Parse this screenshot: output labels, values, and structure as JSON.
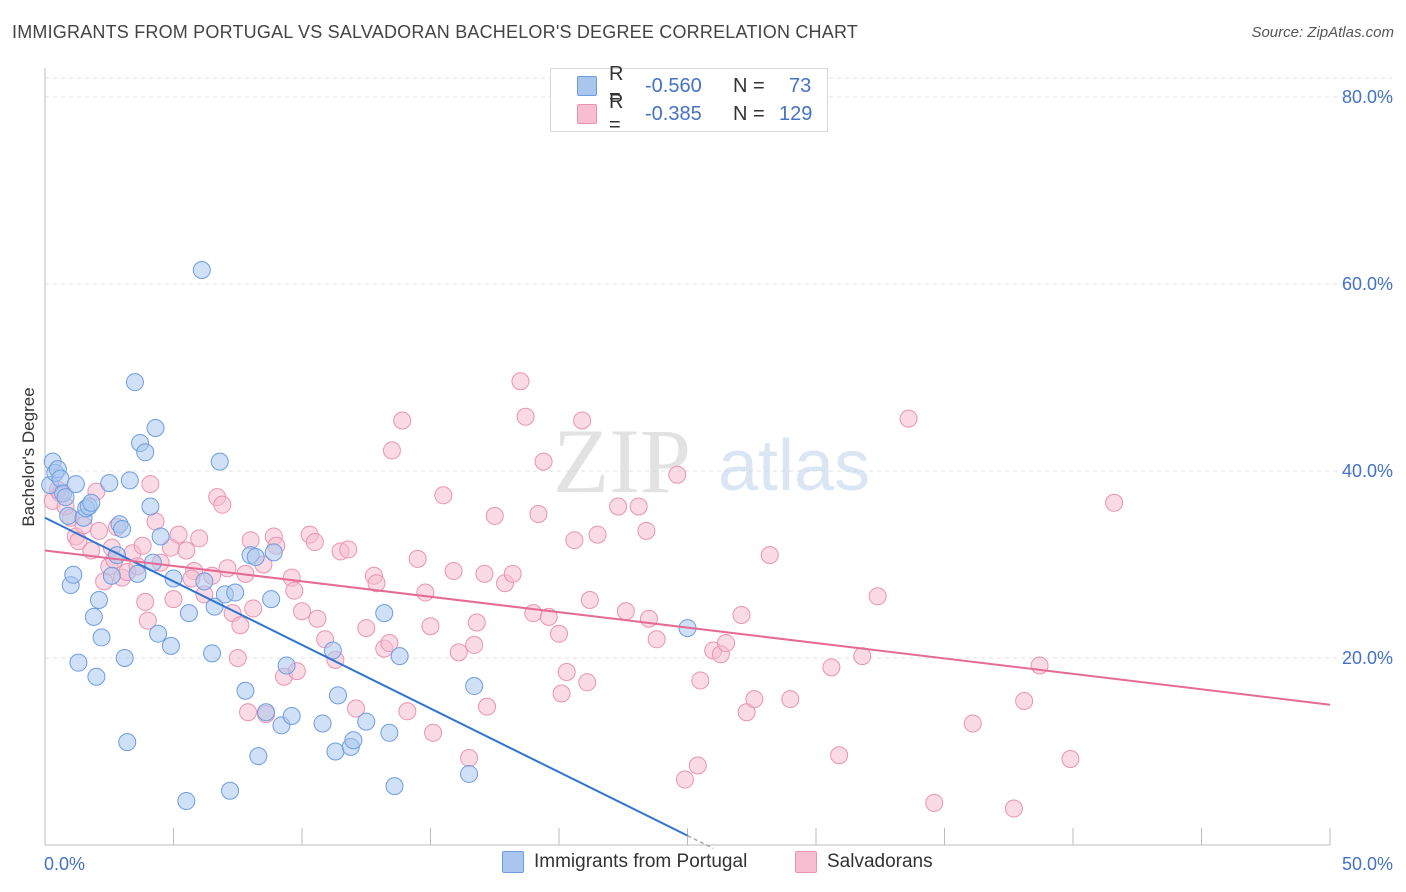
{
  "title": "IMMIGRANTS FROM PORTUGAL VS SALVADORAN BACHELOR'S DEGREE CORRELATION CHART",
  "source": "Source: ZipAtlas.com",
  "watermark": {
    "zip": "ZIP",
    "atlas": "atlas"
  },
  "legend": {
    "r_label": "R =",
    "n_label": "N =",
    "rows": [
      {
        "r": "-0.560",
        "n": "73"
      },
      {
        "r": "-0.385",
        "n": "129"
      }
    ]
  },
  "bottom_legend": [
    "Immigrants from Portugal",
    "Salvadorans"
  ],
  "colors": {
    "blue_fill": "#a9c6ef",
    "blue_stroke": "#6d9de0",
    "blue_line": "#2f74d0",
    "pink_fill": "#f6bed0",
    "pink_stroke": "#eb93b2",
    "pink_line": "#e56b95",
    "tick_text": "#4472c4",
    "grid": "#e0e0e0"
  },
  "chart_data": {
    "type": "scatter",
    "title": "IMMIGRANTS FROM PORTUGAL VS SALVADORAN BACHELOR'S DEGREE CORRELATION CHART",
    "xlabel": "",
    "ylabel": "Bachelor's Degree",
    "xlim": [
      0,
      50
    ],
    "ylim": [
      0,
      80
    ],
    "x_tick_labels": [
      "0.0%",
      "50.0%"
    ],
    "y_tick_labels": [
      "20.0%",
      "40.0%",
      "60.0%",
      "80.0%"
    ],
    "y_ticks": [
      20,
      40,
      60,
      80
    ],
    "grid": true,
    "legend_position": "top-center",
    "series": [
      {
        "name": "Immigrants from Portugal",
        "r": -0.56,
        "n": 73,
        "trend": {
          "x0": 0.0,
          "y0": 35.0,
          "x1": 25.0,
          "y1": 1.0,
          "dashed_to_x": 26.0
        },
        "points": [
          [
            0.2,
            38.5
          ],
          [
            0.3,
            41.0
          ],
          [
            0.4,
            39.8
          ],
          [
            0.5,
            40.2
          ],
          [
            0.6,
            39.2
          ],
          [
            0.7,
            37.6
          ],
          [
            0.8,
            37.2
          ],
          [
            0.9,
            35.2
          ],
          [
            1.0,
            27.8
          ],
          [
            1.1,
            28.9
          ],
          [
            1.2,
            38.6
          ],
          [
            1.3,
            19.5
          ],
          [
            1.5,
            35.0
          ],
          [
            1.6,
            36.0
          ],
          [
            1.7,
            36.2
          ],
          [
            1.8,
            36.6
          ],
          [
            1.9,
            24.4
          ],
          [
            2.0,
            18.0
          ],
          [
            2.1,
            26.2
          ],
          [
            2.2,
            22.2
          ],
          [
            2.5,
            38.7
          ],
          [
            2.6,
            28.8
          ],
          [
            2.8,
            31.0
          ],
          [
            2.9,
            34.3
          ],
          [
            3.0,
            33.8
          ],
          [
            3.1,
            20.0
          ],
          [
            3.2,
            11.0
          ],
          [
            3.3,
            39.0
          ],
          [
            3.5,
            49.5
          ],
          [
            3.6,
            29.0
          ],
          [
            3.7,
            43.0
          ],
          [
            3.9,
            42.0
          ],
          [
            4.1,
            36.2
          ],
          [
            4.2,
            30.2
          ],
          [
            4.3,
            44.6
          ],
          [
            4.4,
            22.6
          ],
          [
            4.5,
            33.0
          ],
          [
            4.9,
            21.3
          ],
          [
            5.0,
            28.5
          ],
          [
            5.5,
            4.7
          ],
          [
            5.6,
            24.8
          ],
          [
            6.1,
            61.5
          ],
          [
            6.2,
            28.2
          ],
          [
            6.5,
            20.5
          ],
          [
            6.6,
            25.5
          ],
          [
            6.8,
            41.0
          ],
          [
            7.0,
            26.8
          ],
          [
            7.2,
            5.8
          ],
          [
            7.4,
            27.0
          ],
          [
            7.8,
            16.5
          ],
          [
            8.0,
            31.0
          ],
          [
            8.2,
            30.8
          ],
          [
            8.3,
            9.5
          ],
          [
            8.6,
            14.2
          ],
          [
            8.8,
            26.3
          ],
          [
            8.9,
            31.3
          ],
          [
            9.2,
            12.8
          ],
          [
            9.4,
            19.2
          ],
          [
            9.6,
            13.8
          ],
          [
            10.8,
            13.0
          ],
          [
            11.2,
            20.8
          ],
          [
            11.3,
            10.0
          ],
          [
            11.4,
            16.0
          ],
          [
            11.9,
            10.5
          ],
          [
            12.0,
            11.2
          ],
          [
            12.5,
            13.2
          ],
          [
            13.2,
            24.8
          ],
          [
            13.4,
            12.0
          ],
          [
            13.6,
            6.3
          ],
          [
            13.8,
            20.2
          ],
          [
            16.5,
            7.6
          ],
          [
            16.7,
            17.0
          ],
          [
            25.0,
            23.2
          ]
        ]
      },
      {
        "name": "Salvadorans",
        "r": -0.385,
        "n": 129,
        "trend": {
          "x0": 0.0,
          "y0": 31.5,
          "x1": 50.0,
          "y1": 15.0
        },
        "points": [
          [
            0.3,
            36.8
          ],
          [
            0.5,
            38.0
          ],
          [
            0.8,
            36.2
          ],
          [
            1.0,
            35.0
          ],
          [
            1.2,
            33.0
          ],
          [
            1.5,
            34.2
          ],
          [
            1.8,
            31.5
          ],
          [
            2.0,
            37.8
          ],
          [
            2.1,
            33.6
          ],
          [
            2.3,
            28.2
          ],
          [
            2.5,
            29.8
          ],
          [
            2.6,
            31.8
          ],
          [
            2.8,
            34.0
          ],
          [
            3.0,
            28.6
          ],
          [
            3.2,
            29.2
          ],
          [
            3.4,
            31.2
          ],
          [
            3.6,
            29.8
          ],
          [
            3.8,
            32.0
          ],
          [
            4.0,
            24.0
          ],
          [
            4.1,
            38.6
          ],
          [
            4.3,
            34.6
          ],
          [
            4.5,
            30.2
          ],
          [
            4.9,
            31.8
          ],
          [
            5.0,
            26.3
          ],
          [
            5.2,
            33.2
          ],
          [
            5.5,
            31.5
          ],
          [
            5.8,
            29.3
          ],
          [
            6.0,
            32.8
          ],
          [
            6.2,
            26.8
          ],
          [
            6.5,
            28.8
          ],
          [
            6.7,
            37.2
          ],
          [
            6.9,
            36.4
          ],
          [
            7.1,
            29.6
          ],
          [
            7.3,
            24.8
          ],
          [
            7.5,
            20.0
          ],
          [
            7.6,
            23.5
          ],
          [
            7.8,
            29.0
          ],
          [
            8.0,
            32.6
          ],
          [
            8.1,
            25.3
          ],
          [
            8.5,
            30.0
          ],
          [
            8.6,
            14.0
          ],
          [
            8.9,
            33.0
          ],
          [
            9.0,
            32.0
          ],
          [
            9.3,
            18.0
          ],
          [
            9.6,
            28.6
          ],
          [
            9.8,
            18.6
          ],
          [
            10.0,
            25.0
          ],
          [
            10.3,
            33.2
          ],
          [
            10.5,
            32.4
          ],
          [
            10.6,
            24.2
          ],
          [
            10.9,
            22.0
          ],
          [
            11.3,
            19.8
          ],
          [
            11.5,
            31.4
          ],
          [
            11.8,
            31.6
          ],
          [
            12.1,
            14.6
          ],
          [
            12.5,
            23.2
          ],
          [
            12.8,
            28.8
          ],
          [
            12.9,
            28.0
          ],
          [
            13.2,
            21.0
          ],
          [
            13.4,
            21.6
          ],
          [
            13.5,
            42.2
          ],
          [
            13.9,
            45.4
          ],
          [
            14.1,
            14.3
          ],
          [
            14.5,
            30.6
          ],
          [
            14.8,
            27.0
          ],
          [
            15.0,
            23.4
          ],
          [
            15.1,
            12.0
          ],
          [
            15.5,
            37.4
          ],
          [
            15.9,
            29.3
          ],
          [
            16.1,
            20.6
          ],
          [
            16.5,
            9.3
          ],
          [
            16.7,
            21.4
          ],
          [
            16.8,
            23.8
          ],
          [
            17.1,
            29.0
          ],
          [
            17.2,
            14.8
          ],
          [
            17.5,
            35.2
          ],
          [
            17.9,
            28.0
          ],
          [
            18.2,
            29.0
          ],
          [
            18.5,
            49.6
          ],
          [
            18.7,
            45.8
          ],
          [
            19.0,
            24.8
          ],
          [
            19.2,
            35.4
          ],
          [
            19.4,
            41.0
          ],
          [
            19.6,
            24.4
          ],
          [
            20.0,
            22.6
          ],
          [
            20.1,
            16.2
          ],
          [
            20.3,
            18.5
          ],
          [
            20.6,
            32.6
          ],
          [
            20.9,
            45.4
          ],
          [
            21.1,
            17.4
          ],
          [
            21.2,
            26.2
          ],
          [
            21.5,
            33.2
          ],
          [
            22.3,
            36.2
          ],
          [
            22.6,
            25.0
          ],
          [
            23.1,
            36.2
          ],
          [
            23.4,
            33.6
          ],
          [
            23.5,
            24.2
          ],
          [
            23.8,
            22.0
          ],
          [
            24.6,
            39.6
          ],
          [
            24.9,
            7.0
          ],
          [
            25.4,
            8.5
          ],
          [
            25.5,
            17.6
          ],
          [
            26.0,
            20.8
          ],
          [
            26.3,
            20.4
          ],
          [
            26.5,
            21.6
          ],
          [
            27.1,
            24.6
          ],
          [
            27.3,
            14.2
          ],
          [
            27.6,
            15.6
          ],
          [
            28.2,
            31.0
          ],
          [
            29.0,
            15.6
          ],
          [
            30.6,
            19.0
          ],
          [
            30.9,
            9.6
          ],
          [
            31.8,
            20.2
          ],
          [
            32.4,
            26.6
          ],
          [
            33.6,
            45.6
          ],
          [
            34.6,
            4.5
          ],
          [
            36.1,
            13.0
          ],
          [
            37.7,
            3.9
          ],
          [
            38.1,
            15.4
          ],
          [
            38.7,
            19.2
          ],
          [
            39.9,
            9.2
          ],
          [
            41.6,
            36.6
          ],
          [
            0.6,
            37.6
          ],
          [
            1.3,
            32.5
          ],
          [
            2.7,
            30.5
          ],
          [
            3.9,
            26.0
          ],
          [
            5.7,
            28.5
          ],
          [
            7.9,
            14.2
          ],
          [
            9.7,
            27.2
          ]
        ]
      }
    ]
  }
}
